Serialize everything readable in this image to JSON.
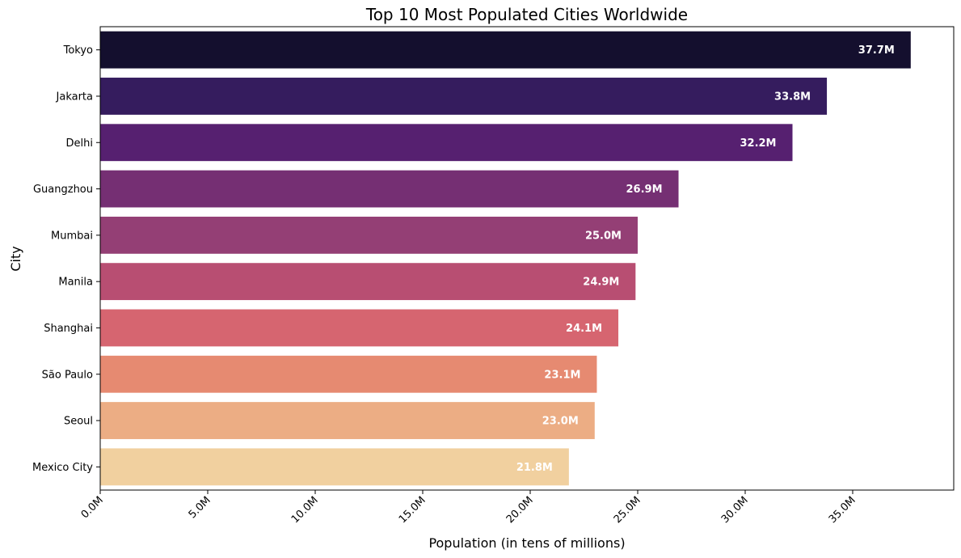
{
  "chart_data": {
    "type": "bar",
    "orientation": "horizontal",
    "title": "Top 10 Most Populated Cities Worldwide",
    "xlabel": "Population (in tens of millions)",
    "ylabel": "City",
    "xlim": [
      0,
      39.7
    ],
    "xticks": [
      0,
      5,
      10,
      15,
      20,
      25,
      30,
      35
    ],
    "xtick_labels": [
      "0.0M",
      "5.0M",
      "10.0M",
      "15.0M",
      "20.0M",
      "25.0M",
      "30.0M",
      "35.0M"
    ],
    "grid": false,
    "categories": [
      "Tokyo",
      "Jakarta",
      "Delhi",
      "Guangzhou",
      "Mumbai",
      "Manila",
      "Shanghai",
      "São Paulo",
      "Seoul",
      "Mexico City"
    ],
    "values": [
      37.7,
      33.8,
      32.2,
      26.9,
      25.0,
      24.9,
      24.1,
      23.1,
      23.0,
      21.8
    ],
    "data_labels": [
      "37.7M",
      "33.8M",
      "32.2M",
      "26.9M",
      "25.0M",
      "24.9M",
      "24.1M",
      "23.1M",
      "23.0M",
      "21.8M"
    ],
    "colors": [
      "#140f2e",
      "#351c5e",
      "#562070",
      "#752f73",
      "#943f75",
      "#b84e72",
      "#d66570",
      "#e68a71",
      "#ecad84",
      "#f1d09f"
    ]
  }
}
